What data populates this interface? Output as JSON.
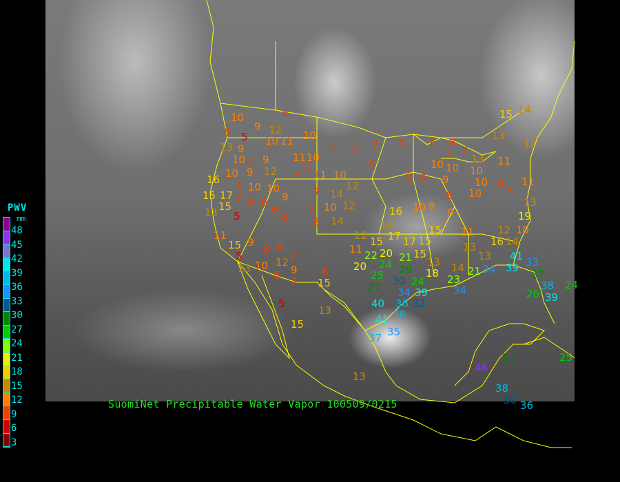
{
  "caption": "SuomiNet Precipitable Water Vapor 100509/0215",
  "legend": {
    "title": "PWV",
    "unit": "mm",
    "ticks": [
      "48",
      "45",
      "42",
      "39",
      "36",
      "33",
      "30",
      "27",
      "24",
      "21",
      "18",
      "15",
      "12",
      "9",
      "6",
      "3"
    ],
    "colors": [
      "#900090",
      "#9030f0",
      "#8070d0",
      "#00e8e8",
      "#00b8e8",
      "#1e90ff",
      "#005a90",
      "#008800",
      "#00d000",
      "#80ff00",
      "#f0f000",
      "#f0d000",
      "#c88800",
      "#ff8000",
      "#f04000",
      "#d00000",
      "#8b0000"
    ]
  },
  "border_color": "#ffff00",
  "stations": [
    10,
    9,
    12,
    8,
    8,
    5,
    10,
    11,
    10,
    13,
    9,
    6,
    7,
    10,
    7,
    9,
    9,
    12,
    11,
    10,
    6,
    8,
    11,
    10,
    16,
    10,
    6,
    10,
    10,
    12,
    15,
    17,
    7,
    15,
    8,
    6,
    9,
    7,
    14,
    10,
    12,
    13,
    5,
    6,
    6,
    7,
    6,
    14,
    11,
    15,
    5,
    9,
    8,
    6,
    13,
    10,
    12,
    7,
    9,
    8,
    7,
    6,
    15,
    5,
    15,
    13,
    13,
    16,
    10,
    9,
    14,
    12,
    15,
    17,
    15,
    11,
    12,
    10,
    17,
    15,
    16,
    14,
    11,
    22,
    20,
    24,
    21,
    15,
    13,
    13,
    13,
    20,
    18,
    14,
    25,
    29,
    24,
    27,
    30,
    23,
    21,
    34,
    41,
    39,
    33,
    27,
    34,
    39,
    32,
    34,
    38,
    26,
    39,
    40,
    36,
    36,
    41,
    35,
    37,
    24,
    25,
    27,
    46,
    38,
    30,
    36,
    15,
    14,
    13,
    12,
    6,
    8,
    7,
    7,
    13,
    10,
    10,
    10,
    11,
    8,
    8,
    11,
    10,
    10,
    9,
    8,
    6,
    6,
    7,
    7,
    9,
    8,
    13,
    19
  ]
}
